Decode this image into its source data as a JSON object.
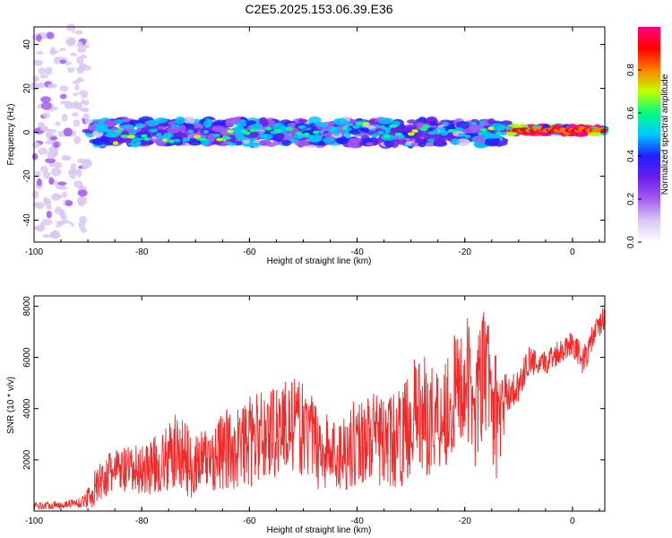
{
  "page": {
    "title": "C2E5.2025.153.06.39.E36"
  },
  "colors": {
    "snr_line": "#ee2a2a",
    "colormap": [
      "#ffffff",
      "#d9c8f2",
      "#a45cf0",
      "#6a1ee8",
      "#2020ff",
      "#00c8ff",
      "#00ff80",
      "#c0ff00",
      "#ff8000",
      "#ff0000",
      "#ff0080"
    ]
  },
  "chart_data": [
    {
      "type": "heatmap",
      "title": "C2E5.2025.153.06.39.E36",
      "xlabel": "Height of straight line (km)",
      "ylabel": "Frequency (Hz)",
      "xlim": [
        -100,
        6
      ],
      "ylim": [
        -50,
        48
      ],
      "xticks": [
        -100,
        -80,
        -60,
        -40,
        -20,
        0
      ],
      "yticks": [
        -40,
        -20,
        0,
        20,
        40
      ],
      "colorbar": {
        "label": "Normalized spectral amplitude",
        "range": [
          0,
          1
        ],
        "ticks": [
          0.0,
          0.2,
          0.4,
          0.6,
          0.8
        ]
      },
      "description_bands": [
        {
          "x_range": [
            -100,
            -90
          ],
          "freq_center": 0,
          "freq_spread": 48,
          "amplitude": 0.12
        },
        {
          "x_range": [
            -90,
            -12
          ],
          "freq_center": 0,
          "freq_spread": 8,
          "amplitude": 0.45
        },
        {
          "x_range": [
            -12,
            6
          ],
          "freq_center": 1,
          "freq_spread": 2,
          "amplitude": 0.95
        }
      ]
    },
    {
      "type": "line",
      "xlabel": "Height of straight line (km)",
      "ylabel": "SNR (10 * v/v)",
      "xlim": [
        -100,
        6
      ],
      "ylim": [
        0,
        8400
      ],
      "xticks": [
        -100,
        -80,
        -60,
        -40,
        -20,
        0
      ],
      "yticks": [
        2000,
        4000,
        6000,
        8000
      ],
      "series": [
        {
          "x": [
            -100,
            -95,
            -91,
            -89,
            -87,
            -85,
            -82,
            -79,
            -76,
            -73,
            -71,
            -68,
            -65,
            -62,
            -59,
            -56,
            -53,
            -50,
            -47,
            -44,
            -41,
            -38,
            -35,
            -32,
            -29,
            -26,
            -23,
            -20,
            -18,
            -16,
            -14,
            -12,
            -10,
            -8,
            -6,
            -4,
            -2,
            0,
            2,
            4,
            6
          ],
          "y": [
            200,
            250,
            350,
            800,
            1300,
            1600,
            1500,
            1700,
            1900,
            2400,
            1800,
            2000,
            2300,
            2500,
            2800,
            3100,
            3400,
            3200,
            2500,
            2100,
            2600,
            2900,
            2700,
            2800,
            3900,
            3600,
            4100,
            5200,
            4200,
            5600,
            3500,
            4600,
            4900,
            5900,
            5600,
            6000,
            6300,
            6600,
            5800,
            6900,
            7600
          ],
          "spread": [
            150,
            150,
            200,
            700,
            800,
            900,
            1000,
            1100,
            1200,
            1700,
            1300,
            1300,
            1600,
            1700,
            1800,
            1900,
            1900,
            1800,
            1700,
            1500,
            1700,
            1800,
            1800,
            1900,
            2300,
            2300,
            2400,
            2600,
            2500,
            2700,
            2400,
            700,
            600,
            600,
            500,
            500,
            500,
            500,
            600,
            500,
            500
          ]
        }
      ]
    }
  ]
}
